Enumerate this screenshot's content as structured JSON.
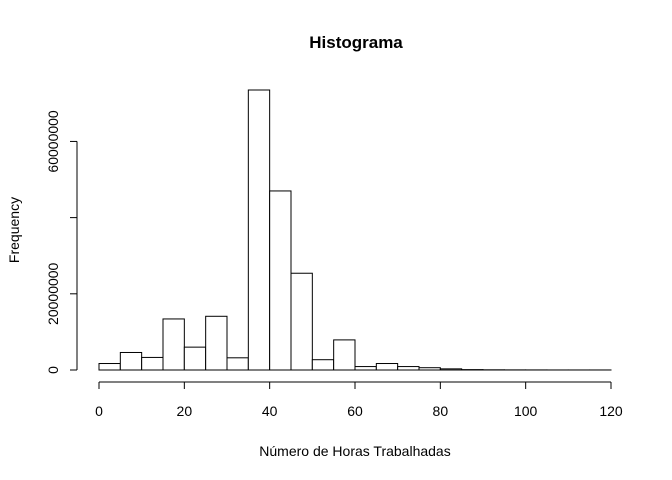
{
  "chart_data": {
    "type": "bar",
    "title": "Histograma",
    "xlabel": "Número de Horas Trabalhadas",
    "ylabel": "Frequency",
    "xlim": [
      0,
      120
    ],
    "ylim": [
      0,
      73500000
    ],
    "x_ticks": [
      0,
      20,
      40,
      60,
      80,
      100,
      120
    ],
    "y_ticks": [
      0,
      20000000,
      40000000,
      60000000
    ],
    "y_tick_labels": [
      "0",
      "20000000",
      "",
      "60000000"
    ],
    "bin_width": 5,
    "bins": [
      {
        "start": 0,
        "value": 1700000
      },
      {
        "start": 5,
        "value": 4600000
      },
      {
        "start": 10,
        "value": 3300000
      },
      {
        "start": 15,
        "value": 13400000
      },
      {
        "start": 20,
        "value": 6000000
      },
      {
        "start": 25,
        "value": 14100000
      },
      {
        "start": 30,
        "value": 3200000
      },
      {
        "start": 35,
        "value": 73500000
      },
      {
        "start": 40,
        "value": 47000000
      },
      {
        "start": 45,
        "value": 25400000
      },
      {
        "start": 50,
        "value": 2700000
      },
      {
        "start": 55,
        "value": 7900000
      },
      {
        "start": 60,
        "value": 900000
      },
      {
        "start": 65,
        "value": 1700000
      },
      {
        "start": 70,
        "value": 900000
      },
      {
        "start": 75,
        "value": 600000
      },
      {
        "start": 80,
        "value": 300000
      },
      {
        "start": 85,
        "value": 100000
      },
      {
        "start": 90,
        "value": 50000
      },
      {
        "start": 95,
        "value": 30000
      },
      {
        "start": 100,
        "value": 20000
      },
      {
        "start": 105,
        "value": 10000
      },
      {
        "start": 110,
        "value": 10000
      },
      {
        "start": 115,
        "value": 10000
      }
    ]
  }
}
